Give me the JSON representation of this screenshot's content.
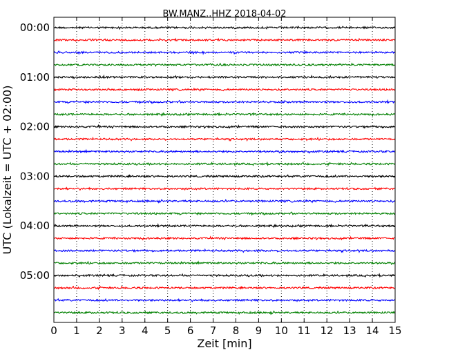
{
  "chart_data": {
    "type": "line",
    "title": "BW.MANZ..HHZ 2018-04-02",
    "xlabel": "Zeit  [min]",
    "ylabel": "UTC (Lokalzeit = UTC + 02:00)",
    "xlim": [
      0,
      15
    ],
    "x_ticks": [
      "0",
      "1",
      "2",
      "3",
      "4",
      "5",
      "6",
      "7",
      "8",
      "9",
      "10",
      "11",
      "12",
      "13",
      "14",
      "15"
    ],
    "y_tick_labels": [
      "00:00",
      "01:00",
      "02:00",
      "03:00",
      "04:00",
      "05:00"
    ],
    "trace_interval_min": 15,
    "grid": "vertical dotted at each minute",
    "colors": [
      "#000000",
      "#ff0000",
      "#0000ff",
      "#008000"
    ],
    "traces": [
      {
        "start": "00:00",
        "color": "#000000"
      },
      {
        "start": "00:15",
        "color": "#ff0000"
      },
      {
        "start": "00:30",
        "color": "#0000ff"
      },
      {
        "start": "00:45",
        "color": "#008000"
      },
      {
        "start": "01:00",
        "color": "#000000"
      },
      {
        "start": "01:15",
        "color": "#ff0000"
      },
      {
        "start": "01:30",
        "color": "#0000ff"
      },
      {
        "start": "01:45",
        "color": "#008000"
      },
      {
        "start": "02:00",
        "color": "#000000"
      },
      {
        "start": "02:15",
        "color": "#ff0000"
      },
      {
        "start": "02:30",
        "color": "#0000ff"
      },
      {
        "start": "02:45",
        "color": "#008000"
      },
      {
        "start": "03:00",
        "color": "#000000"
      },
      {
        "start": "03:15",
        "color": "#ff0000"
      },
      {
        "start": "03:30",
        "color": "#0000ff"
      },
      {
        "start": "03:45",
        "color": "#008000"
      },
      {
        "start": "04:00",
        "color": "#000000"
      },
      {
        "start": "04:15",
        "color": "#ff0000"
      },
      {
        "start": "04:30",
        "color": "#0000ff"
      },
      {
        "start": "04:45",
        "color": "#008000"
      },
      {
        "start": "05:00",
        "color": "#000000"
      },
      {
        "start": "05:15",
        "color": "#ff0000"
      },
      {
        "start": "05:30",
        "color": "#0000ff"
      },
      {
        "start": "05:45",
        "color": "#008000"
      }
    ]
  }
}
